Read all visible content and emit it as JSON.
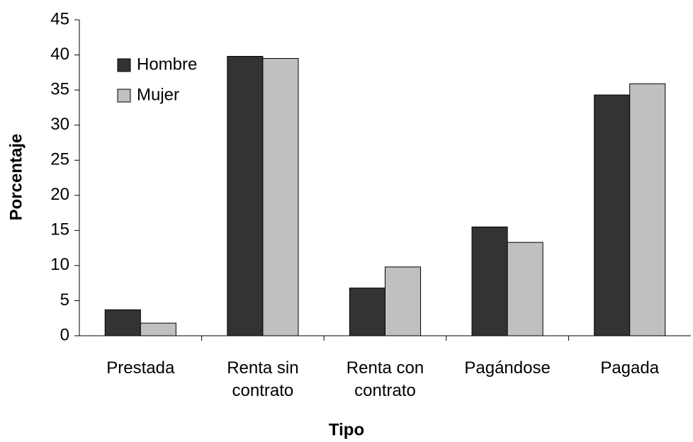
{
  "chart_data": {
    "type": "bar",
    "x_label": "Tipo",
    "y_label": "Porcentaje",
    "categories": [
      "Prestada",
      "Renta sin contrato",
      "Renta con contrato",
      "Pagándose",
      "Pagada"
    ],
    "series": [
      {
        "name": "Hombre",
        "color": "#333333",
        "values": [
          3.7,
          39.8,
          6.8,
          15.5,
          34.3
        ]
      },
      {
        "name": "Mujer",
        "color": "#c0c0c0",
        "values": [
          1.8,
          39.5,
          9.8,
          13.3,
          35.9
        ]
      }
    ],
    "ylim": [
      0,
      45
    ],
    "yticks": [
      0,
      5,
      10,
      15,
      20,
      25,
      30,
      35,
      40,
      45
    ],
    "grid": false,
    "legend": "upper left"
  }
}
